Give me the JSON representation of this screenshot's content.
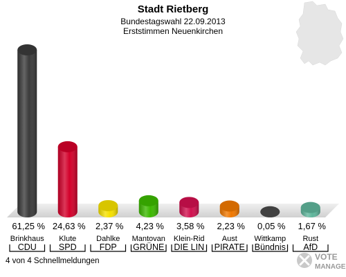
{
  "header": {
    "title": "Stadt Rietberg",
    "subtitle1": "Bundestagswahl 22.09.2013",
    "subtitle2": "Erststimmen Neuenkirchen"
  },
  "footer": {
    "status": "4 von 4 Schnellmeldungen"
  },
  "logo": {
    "line1": "VOTE",
    "line2": "MANAGER"
  },
  "chart_data": {
    "type": "bar",
    "title": "Stadt Rietberg",
    "subtitle": "Bundestagswahl 22.09.2013 — Erststimmen Neuenkirchen",
    "xlabel": "",
    "ylabel": "",
    "grid": false,
    "legend": "none",
    "categories": [
      {
        "candidate": "Brinkhaus",
        "party": "CDU"
      },
      {
        "candidate": "Klute",
        "party": "SPD"
      },
      {
        "candidate": "Dahlke",
        "party": "FDP"
      },
      {
        "candidate": "Mantovan",
        "party": "GRÜNE"
      },
      {
        "candidate": "Klein-Rid",
        "party": "DIE LIN"
      },
      {
        "candidate": "Aust",
        "party": "PIRATE"
      },
      {
        "candidate": "Wittkamp",
        "party": "Bündnis"
      },
      {
        "candidate": "Rust",
        "party": "AfD"
      }
    ],
    "values": [
      61.25,
      24.63,
      2.37,
      4.23,
      3.58,
      2.23,
      0.05,
      1.67
    ],
    "value_labels": [
      "61,25 %",
      "24,63 %",
      "2,37 %",
      "4,23 %",
      "3,58 %",
      "2,23 %",
      "0,05 %",
      "1,67 %"
    ],
    "colors": [
      "#3a3a3a",
      "#d3002a",
      "#f5e000",
      "#3cb800",
      "#d0104e",
      "#f07800",
      "#4a4a4a",
      "#5fb59b"
    ]
  }
}
